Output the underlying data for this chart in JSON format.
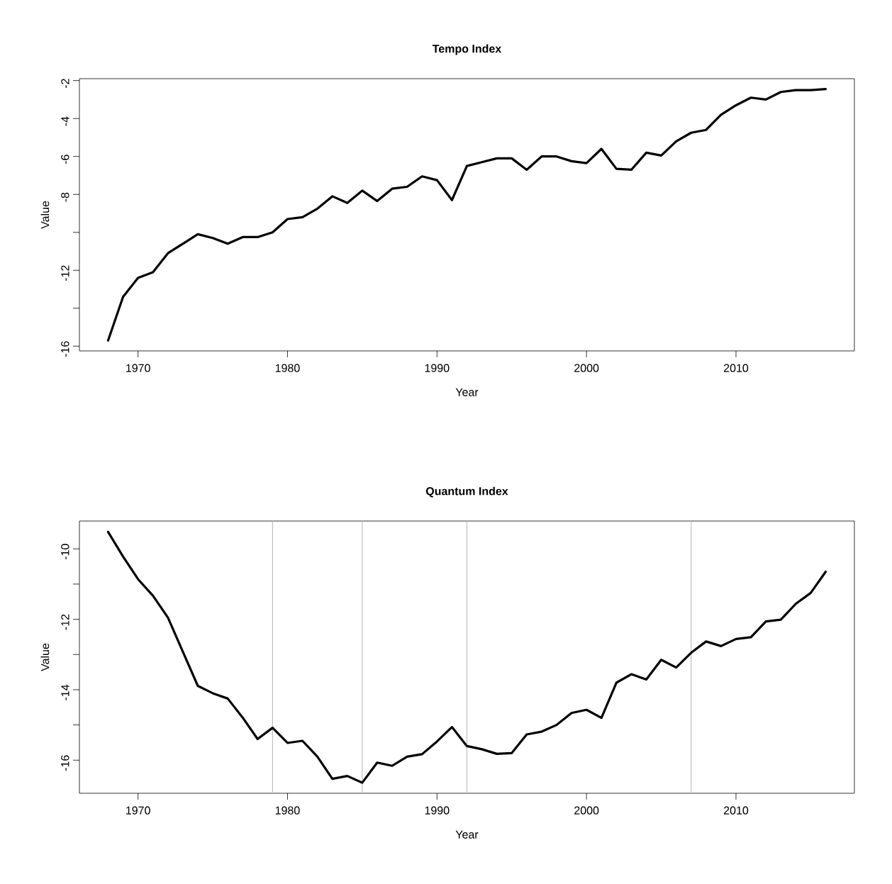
{
  "chart_data": [
    {
      "type": "line",
      "title": "Tempo Index",
      "xlabel": "Year",
      "ylabel": "Value",
      "color": "#000000",
      "x": [
        1968,
        1969,
        1970,
        1971,
        1972,
        1973,
        1974,
        1975,
        1976,
        1977,
        1978,
        1979,
        1980,
        1981,
        1982,
        1983,
        1984,
        1985,
        1986,
        1987,
        1988,
        1989,
        1990,
        1991,
        1992,
        1993,
        1994,
        1995,
        1996,
        1997,
        1998,
        1999,
        2000,
        2001,
        2002,
        2003,
        2004,
        2005,
        2006,
        2007,
        2008,
        2009,
        2010,
        2011,
        2012,
        2013,
        2014,
        2015,
        2016
      ],
      "values": [
        -15.7,
        -13.4,
        -12.4,
        -12.1,
        -11.1,
        -10.6,
        -10.1,
        -10.3,
        -10.6,
        -10.25,
        -10.25,
        -10.0,
        -9.3,
        -9.2,
        -8.75,
        -8.1,
        -8.45,
        -7.8,
        -8.35,
        -7.7,
        -7.6,
        -7.05,
        -7.25,
        -8.3,
        -6.5,
        -6.3,
        -6.1,
        -6.1,
        -6.7,
        -6.0,
        -6.0,
        -6.25,
        -6.35,
        -5.6,
        -6.65,
        -6.7,
        -5.8,
        -5.95,
        -5.2,
        -4.75,
        -4.6,
        -3.8,
        -3.3,
        -2.9,
        -3.0,
        -2.6,
        -2.5,
        -2.5,
        -2.45
      ],
      "xlim": [
        1966.08,
        2017.92
      ],
      "ylim": [
        -16.25,
        -1.9
      ],
      "xticks": [
        1970,
        1980,
        1990,
        2000,
        2010
      ],
      "yticks": [
        -2,
        -4,
        -6,
        -8,
        {
          "value": -10,
          "label": null
        },
        -12,
        {
          "value": -14,
          "label": null
        },
        -16
      ]
    },
    {
      "type": "line",
      "title": "Quantum Index",
      "xlabel": "Year",
      "ylabel": "Value",
      "color": "#000000",
      "x": [
        1968,
        1969,
        1970,
        1971,
        1972,
        1973,
        1974,
        1975,
        1976,
        1977,
        1978,
        1979,
        1980,
        1981,
        1982,
        1983,
        1984,
        1985,
        1986,
        1987,
        1988,
        1989,
        1990,
        1991,
        1992,
        1993,
        1994,
        1995,
        1996,
        1997,
        1998,
        1999,
        2000,
        2001,
        2002,
        2003,
        2004,
        2005,
        2006,
        2007,
        2008,
        2009,
        2010,
        2011,
        2012,
        2013,
        2014,
        2015,
        2016
      ],
      "values": [
        -9.52,
        -10.22,
        -10.86,
        -11.33,
        -11.95,
        -12.92,
        -13.89,
        -14.1,
        -14.25,
        -14.79,
        -15.4,
        -15.08,
        -15.51,
        -15.45,
        -15.9,
        -16.53,
        -16.45,
        -16.64,
        -16.07,
        -16.16,
        -15.9,
        -15.83,
        -15.47,
        -15.06,
        -15.6,
        -15.69,
        -15.82,
        -15.8,
        -15.27,
        -15.19,
        -15.0,
        -14.66,
        -14.57,
        -14.8,
        -13.8,
        -13.56,
        -13.71,
        -13.15,
        -13.37,
        -12.95,
        -12.63,
        -12.76,
        -12.56,
        -12.51,
        -12.06,
        -12.01,
        -11.56,
        -11.25,
        -10.65
      ],
      "xlim": [
        1966.08,
        2017.92
      ],
      "ylim": [
        -16.94,
        -9.21
      ],
      "xticks": [
        1970,
        1980,
        1990,
        2000,
        2010
      ],
      "yticks": [
        -10,
        {
          "value": -11,
          "label": null
        },
        -12,
        {
          "value": -13,
          "label": null
        },
        -14,
        {
          "value": -15,
          "label": null
        },
        -16
      ],
      "ref_lines": [
        {
          "axis": "x",
          "value": 1979,
          "color": "#bebebe"
        },
        {
          "axis": "x",
          "value": 1985,
          "color": "#bebebe"
        },
        {
          "axis": "x",
          "value": 1992,
          "color": "#bebebe"
        },
        {
          "axis": "x",
          "value": 2007,
          "color": "#bebebe"
        }
      ]
    }
  ]
}
